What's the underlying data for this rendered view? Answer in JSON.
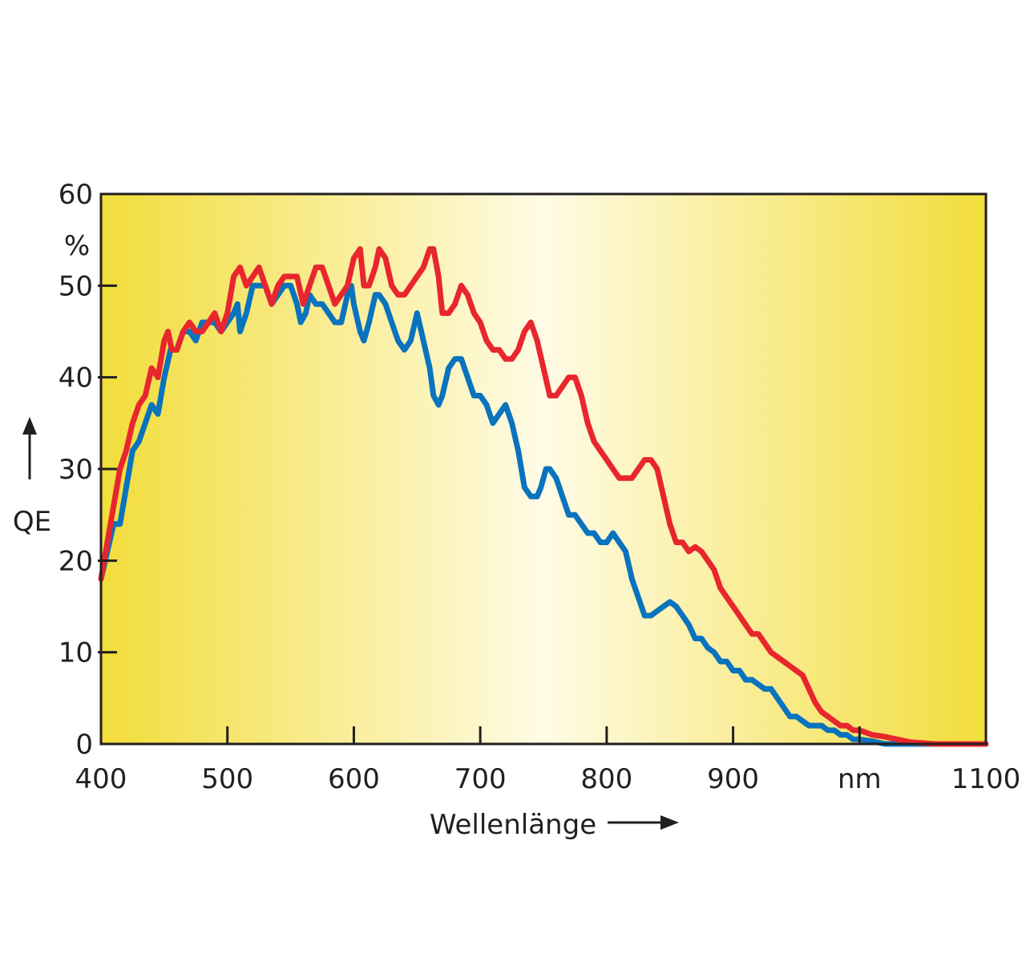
{
  "chart_data": {
    "type": "line",
    "title": "",
    "xlabel": "Wellenlänge",
    "ylabel": "QE",
    "yunit": "%",
    "xunit": "nm",
    "xlim": [
      400,
      1100
    ],
    "ylim": [
      0,
      60
    ],
    "x_ticks": [
      {
        "value": 400,
        "label": "400"
      },
      {
        "value": 500,
        "label": "500"
      },
      {
        "value": 600,
        "label": "600"
      },
      {
        "value": 700,
        "label": "700"
      },
      {
        "value": 800,
        "label": "800"
      },
      {
        "value": 900,
        "label": "900"
      },
      {
        "value": 1000,
        "label": "nm"
      },
      {
        "value": 1100,
        "label": "1100"
      }
    ],
    "y_ticks": [
      {
        "value": 0,
        "label": "0"
      },
      {
        "value": 10,
        "label": "10"
      },
      {
        "value": 20,
        "label": "20"
      },
      {
        "value": 30,
        "label": "30"
      },
      {
        "value": 40,
        "label": "40"
      },
      {
        "value": 50,
        "label": "50"
      },
      {
        "value": 60,
        "label": "60"
      }
    ],
    "grid": false,
    "legend": "none",
    "background": {
      "edge_color": "#f2dd3a",
      "center_color": "#fffbe6"
    },
    "series": [
      {
        "color": "#0a73be",
        "points": [
          [
            400,
            18
          ],
          [
            405,
            21
          ],
          [
            410,
            24
          ],
          [
            415,
            24
          ],
          [
            420,
            28
          ],
          [
            425,
            32
          ],
          [
            430,
            33
          ],
          [
            435,
            35
          ],
          [
            440,
            37
          ],
          [
            445,
            36
          ],
          [
            450,
            40
          ],
          [
            455,
            43
          ],
          [
            460,
            43
          ],
          [
            465,
            45
          ],
          [
            470,
            45
          ],
          [
            475,
            44
          ],
          [
            480,
            46
          ],
          [
            485,
            46
          ],
          [
            490,
            46
          ],
          [
            495,
            45
          ],
          [
            500,
            46
          ],
          [
            505,
            47
          ],
          [
            508,
            48
          ],
          [
            510,
            45
          ],
          [
            515,
            47
          ],
          [
            520,
            50
          ],
          [
            525,
            50
          ],
          [
            530,
            50
          ],
          [
            535,
            48
          ],
          [
            540,
            49
          ],
          [
            545,
            50
          ],
          [
            550,
            50
          ],
          [
            555,
            48
          ],
          [
            558,
            46
          ],
          [
            562,
            47
          ],
          [
            565,
            49
          ],
          [
            570,
            48
          ],
          [
            575,
            48
          ],
          [
            580,
            47
          ],
          [
            585,
            46
          ],
          [
            590,
            46
          ],
          [
            595,
            49
          ],
          [
            598,
            50
          ],
          [
            600,
            48
          ],
          [
            605,
            45
          ],
          [
            608,
            44
          ],
          [
            612,
            46
          ],
          [
            617,
            49
          ],
          [
            620,
            49
          ],
          [
            625,
            48
          ],
          [
            630,
            46
          ],
          [
            635,
            44
          ],
          [
            640,
            43
          ],
          [
            645,
            44
          ],
          [
            650,
            47
          ],
          [
            655,
            44
          ],
          [
            660,
            41
          ],
          [
            663,
            38
          ],
          [
            667,
            37
          ],
          [
            670,
            38
          ],
          [
            675,
            41
          ],
          [
            680,
            42
          ],
          [
            685,
            42
          ],
          [
            690,
            40
          ],
          [
            695,
            38
          ],
          [
            700,
            38
          ],
          [
            705,
            37
          ],
          [
            710,
            35
          ],
          [
            715,
            36
          ],
          [
            720,
            37
          ],
          [
            725,
            35
          ],
          [
            730,
            32
          ],
          [
            735,
            28
          ],
          [
            740,
            27
          ],
          [
            745,
            27
          ],
          [
            748,
            28
          ],
          [
            752,
            30
          ],
          [
            755,
            30
          ],
          [
            760,
            29
          ],
          [
            765,
            27
          ],
          [
            770,
            25
          ],
          [
            775,
            25
          ],
          [
            780,
            24
          ],
          [
            785,
            23
          ],
          [
            790,
            23
          ],
          [
            795,
            22
          ],
          [
            800,
            22
          ],
          [
            805,
            23
          ],
          [
            810,
            22
          ],
          [
            815,
            21
          ],
          [
            820,
            18
          ],
          [
            825,
            16
          ],
          [
            830,
            14
          ],
          [
            835,
            14
          ],
          [
            840,
            14.5
          ],
          [
            845,
            15
          ],
          [
            850,
            15.5
          ],
          [
            855,
            15
          ],
          [
            860,
            14
          ],
          [
            865,
            13
          ],
          [
            870,
            11.5
          ],
          [
            875,
            11.5
          ],
          [
            880,
            10.5
          ],
          [
            885,
            10
          ],
          [
            890,
            9
          ],
          [
            895,
            9
          ],
          [
            900,
            8
          ],
          [
            905,
            8
          ],
          [
            910,
            7
          ],
          [
            915,
            7
          ],
          [
            920,
            6.5
          ],
          [
            925,
            6
          ],
          [
            930,
            6
          ],
          [
            935,
            5
          ],
          [
            940,
            4
          ],
          [
            945,
            3
          ],
          [
            950,
            3
          ],
          [
            955,
            2.5
          ],
          [
            960,
            2
          ],
          [
            965,
            2
          ],
          [
            970,
            2
          ],
          [
            975,
            1.5
          ],
          [
            980,
            1.5
          ],
          [
            985,
            1
          ],
          [
            990,
            1
          ],
          [
            995,
            0.5
          ],
          [
            1000,
            0.5
          ],
          [
            1010,
            0.3
          ],
          [
            1020,
            0
          ],
          [
            1030,
            0
          ],
          [
            1050,
            0
          ],
          [
            1100,
            0
          ]
        ]
      },
      {
        "color": "#e8262e",
        "points": [
          [
            400,
            18
          ],
          [
            405,
            22
          ],
          [
            410,
            26
          ],
          [
            415,
            30
          ],
          [
            420,
            32
          ],
          [
            425,
            35
          ],
          [
            430,
            37
          ],
          [
            435,
            38
          ],
          [
            440,
            41
          ],
          [
            445,
            40
          ],
          [
            450,
            44
          ],
          [
            453,
            45
          ],
          [
            456,
            43
          ],
          [
            460,
            43
          ],
          [
            465,
            45
          ],
          [
            470,
            46
          ],
          [
            475,
            45
          ],
          [
            480,
            45
          ],
          [
            485,
            46
          ],
          [
            490,
            47
          ],
          [
            495,
            45
          ],
          [
            500,
            47
          ],
          [
            505,
            51
          ],
          [
            510,
            52
          ],
          [
            515,
            50
          ],
          [
            520,
            51
          ],
          [
            525,
            52
          ],
          [
            530,
            50
          ],
          [
            535,
            48
          ],
          [
            540,
            50
          ],
          [
            545,
            51
          ],
          [
            550,
            51
          ],
          [
            555,
            51
          ],
          [
            560,
            48
          ],
          [
            565,
            50
          ],
          [
            570,
            52
          ],
          [
            575,
            52
          ],
          [
            580,
            50
          ],
          [
            585,
            48
          ],
          [
            590,
            49
          ],
          [
            595,
            50
          ],
          [
            600,
            53
          ],
          [
            605,
            54
          ],
          [
            608,
            50
          ],
          [
            612,
            50
          ],
          [
            617,
            52
          ],
          [
            620,
            54
          ],
          [
            625,
            53
          ],
          [
            630,
            50
          ],
          [
            635,
            49
          ],
          [
            640,
            49
          ],
          [
            645,
            50
          ],
          [
            650,
            51
          ],
          [
            655,
            52
          ],
          [
            660,
            54
          ],
          [
            663,
            54
          ],
          [
            667,
            51
          ],
          [
            670,
            47
          ],
          [
            675,
            47
          ],
          [
            680,
            48
          ],
          [
            685,
            50
          ],
          [
            690,
            49
          ],
          [
            695,
            47
          ],
          [
            700,
            46
          ],
          [
            705,
            44
          ],
          [
            710,
            43
          ],
          [
            715,
            43
          ],
          [
            720,
            42
          ],
          [
            725,
            42
          ],
          [
            730,
            43
          ],
          [
            735,
            45
          ],
          [
            740,
            46
          ],
          [
            745,
            44
          ],
          [
            750,
            41
          ],
          [
            755,
            38
          ],
          [
            760,
            38
          ],
          [
            765,
            39
          ],
          [
            770,
            40
          ],
          [
            775,
            40
          ],
          [
            780,
            38
          ],
          [
            785,
            35
          ],
          [
            790,
            33
          ],
          [
            795,
            32
          ],
          [
            800,
            31
          ],
          [
            805,
            30
          ],
          [
            810,
            29
          ],
          [
            815,
            29
          ],
          [
            820,
            29
          ],
          [
            825,
            30
          ],
          [
            830,
            31
          ],
          [
            835,
            31
          ],
          [
            840,
            30
          ],
          [
            845,
            27
          ],
          [
            850,
            24
          ],
          [
            855,
            22
          ],
          [
            860,
            22
          ],
          [
            865,
            21
          ],
          [
            870,
            21.5
          ],
          [
            875,
            21
          ],
          [
            880,
            20
          ],
          [
            885,
            19
          ],
          [
            890,
            17
          ],
          [
            895,
            16
          ],
          [
            900,
            15
          ],
          [
            905,
            14
          ],
          [
            910,
            13
          ],
          [
            915,
            12
          ],
          [
            920,
            12
          ],
          [
            925,
            11
          ],
          [
            930,
            10
          ],
          [
            935,
            9.5
          ],
          [
            940,
            9
          ],
          [
            945,
            8.5
          ],
          [
            950,
            8
          ],
          [
            955,
            7.5
          ],
          [
            960,
            6
          ],
          [
            965,
            4.5
          ],
          [
            970,
            3.5
          ],
          [
            975,
            3
          ],
          [
            980,
            2.5
          ],
          [
            985,
            2
          ],
          [
            990,
            2
          ],
          [
            995,
            1.5
          ],
          [
            1000,
            1.5
          ],
          [
            1010,
            1
          ],
          [
            1020,
            0.8
          ],
          [
            1030,
            0.5
          ],
          [
            1040,
            0.2
          ],
          [
            1060,
            0
          ],
          [
            1100,
            0
          ]
        ]
      }
    ]
  }
}
